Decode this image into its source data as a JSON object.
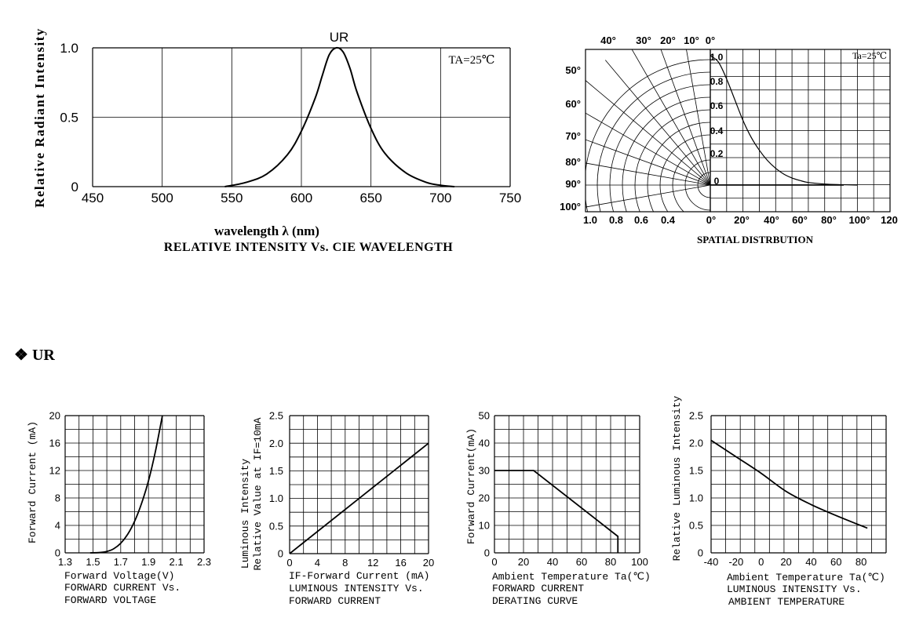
{
  "section": {
    "symbol": "❖",
    "label": "UR"
  },
  "chart_data": [
    {
      "id": "spectrum",
      "type": "line",
      "series_label": "UR",
      "ambient": "TA=25℃",
      "xlabel": "wavelength λ (nm)",
      "caption": [
        "RELATIVE INTENSITY Vs. CIE WAVELENGTH"
      ],
      "ylabel": "Relative Radiant Intensity",
      "xlim": [
        450,
        750
      ],
      "ylim": [
        0,
        1.0
      ],
      "x_ticks": [
        "450",
        "500",
        "550",
        "600",
        "650",
        "700",
        "750"
      ],
      "y_ticks": [
        "0",
        "0.5",
        "1.0"
      ],
      "grid": true,
      "x": [
        545,
        560,
        575,
        590,
        600,
        610,
        615,
        620,
        625,
        630,
        635,
        640,
        650,
        660,
        675,
        690,
        700,
        710
      ],
      "y": [
        0.0,
        0.03,
        0.09,
        0.23,
        0.4,
        0.64,
        0.8,
        0.95,
        1.0,
        0.97,
        0.85,
        0.68,
        0.42,
        0.24,
        0.1,
        0.03,
        0.01,
        0.0
      ]
    },
    {
      "id": "spatial",
      "type": "polar",
      "ambient": "Ta=25℃",
      "caption": "SPATIAL DISTRBUTION",
      "angle_labels_top": [
        "40°",
        "30°",
        "20°",
        "10°",
        "0°"
      ],
      "angle_labels_left": [
        "50°",
        "60°",
        "70°",
        "80°",
        "90°",
        "100°"
      ],
      "radial_labels": [
        "1.0",
        "0.8",
        "0.6",
        "0.4"
      ],
      "x_ticks": [
        "0°",
        "20°",
        "40°",
        "60°",
        "80°",
        "100°",
        "120"
      ],
      "y_ticks": [
        "1.0",
        "0.8",
        "0.6",
        "0.4",
        "0.2",
        "0"
      ],
      "angle": [
        0,
        5,
        10,
        15,
        20,
        25,
        30,
        35,
        40,
        45,
        50,
        55,
        60,
        70,
        80,
        90
      ],
      "value": [
        1.0,
        0.95,
        0.82,
        0.66,
        0.5,
        0.37,
        0.27,
        0.19,
        0.13,
        0.085,
        0.055,
        0.035,
        0.02,
        0.008,
        0.003,
        0.0
      ]
    },
    {
      "id": "iv",
      "type": "line",
      "ylabel": "Forward Current (mA)",
      "xlabel": "Forward Voltage(V)",
      "caption": [
        "FORWARD CURRENT Vs.",
        "FORWARD VOLTAGE"
      ],
      "xlim": [
        1.3,
        2.3
      ],
      "ylim": [
        0,
        20
      ],
      "x_ticks": [
        "1.3",
        "1.5",
        "1.7",
        "1.9",
        "2.1",
        "2.3"
      ],
      "y_ticks": [
        "0",
        "4",
        "8",
        "12",
        "16",
        "20"
      ],
      "grid": true,
      "x": [
        1.48,
        1.55,
        1.6,
        1.65,
        1.7,
        1.75,
        1.8,
        1.85,
        1.9,
        1.95,
        2.0
      ],
      "y": [
        0,
        0.05,
        0.2,
        0.6,
        1.4,
        2.7,
        4.6,
        7.2,
        10.5,
        14.8,
        20
      ]
    },
    {
      "id": "liv",
      "type": "line",
      "ylabel": [
        "Luminous Intensity",
        "Relative Value at IF=10mA"
      ],
      "xlabel": "IF-Forward Current (mA)",
      "caption": [
        "LUMINOUS INTENSITY Vs.",
        "FORWARD CURRENT"
      ],
      "xlim": [
        0,
        20
      ],
      "ylim": [
        0,
        2.5
      ],
      "x_ticks": [
        "0",
        "4",
        "8",
        "12",
        "16",
        "20"
      ],
      "y_ticks": [
        "0",
        "0.5",
        "1.0",
        "1.5",
        "2.0",
        "2.5"
      ],
      "grid": true,
      "x": [
        0,
        20
      ],
      "y": [
        0,
        2.0
      ]
    },
    {
      "id": "derating",
      "type": "line",
      "ylabel": "Forward Current(mA)",
      "xlabel": "Ambient Temperature Ta(℃)",
      "caption": [
        "FORWARD CURRENT",
        "DERATING CURVE"
      ],
      "xlim": [
        0,
        100
      ],
      "ylim": [
        0,
        50
      ],
      "x_ticks": [
        "0",
        "20",
        "40",
        "60",
        "80",
        "100"
      ],
      "y_ticks": [
        "0",
        "10",
        "20",
        "30",
        "40",
        "50"
      ],
      "grid": true,
      "x": [
        0,
        27,
        85,
        85
      ],
      "y": [
        30,
        30,
        6,
        0
      ]
    },
    {
      "id": "temp",
      "type": "line",
      "ylabel": "Relative Luminous Intensity",
      "xlabel": "Ambient Temperature Ta(℃)",
      "caption": [
        "LUMINOUS INTENSITY Vs.",
        "AMBIENT TEMPERATURE"
      ],
      "xlim": [
        -40,
        100
      ],
      "ylim": [
        0,
        2.5
      ],
      "x_ticks": [
        "-40",
        "-20",
        "0",
        "20",
        "40",
        "60",
        "80"
      ],
      "y_ticks": [
        "0",
        "0.5",
        "1.0",
        "1.5",
        "2.0",
        "2.5"
      ],
      "grid": true,
      "x": [
        -40,
        -20,
        0,
        20,
        40,
        60,
        85
      ],
      "y": [
        2.05,
        1.75,
        1.45,
        1.12,
        0.88,
        0.68,
        0.45
      ]
    }
  ]
}
